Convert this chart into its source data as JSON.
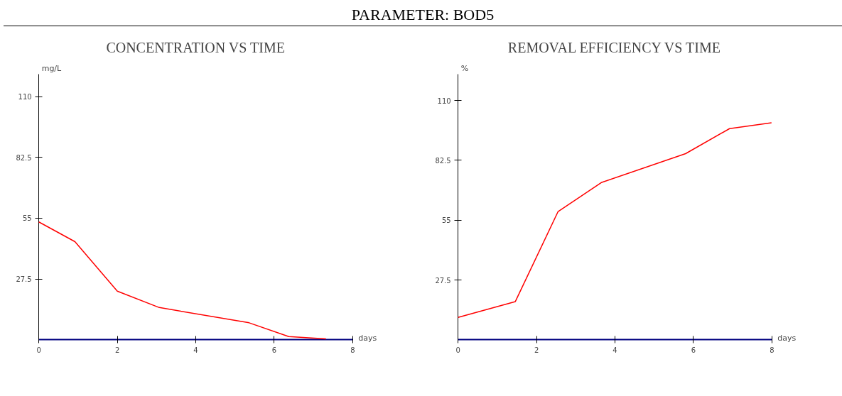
{
  "chart_data": [
    {
      "type": "line",
      "annotations": [
        "PARAMETER: BOD5"
      ],
      "title": "CONCENTRATION VS TIME",
      "xlabel": "days",
      "ylabel": "mg/L",
      "x": [
        0,
        0.92,
        2.0,
        3.07,
        5.36,
        6.37,
        7.32
      ],
      "series": [
        {
          "color": "#ff0000",
          "values": [
            53.3,
            44.4,
            22,
            14.6,
            7.7,
            1.5,
            0.4
          ]
        }
      ],
      "xlim": [
        0,
        8
      ],
      "ylim": [
        0,
        120
      ],
      "xticks": [
        0,
        2,
        4,
        6,
        8
      ],
      "yticks": [
        27.5,
        55,
        82.5,
        110
      ],
      "grid": false
    },
    {
      "type": "line",
      "title": "REMOVAL EFFICIENCY VS TIME",
      "xlabel": "days",
      "ylabel": "%",
      "x": [
        0,
        1.46,
        2.55,
        3.65,
        5.8,
        6.92,
        7.99
      ],
      "series": [
        {
          "color": "#ff0000",
          "values": [
            10.3,
            17.6,
            59,
            72.3,
            85.6,
            97.1,
            99.8
          ]
        }
      ],
      "xlim": [
        0,
        8
      ],
      "ylim": [
        0,
        122
      ],
      "xticks": [
        0,
        2,
        4,
        6,
        8
      ],
      "yticks": [
        27.5,
        55,
        82.5,
        110
      ],
      "grid": false
    }
  ]
}
